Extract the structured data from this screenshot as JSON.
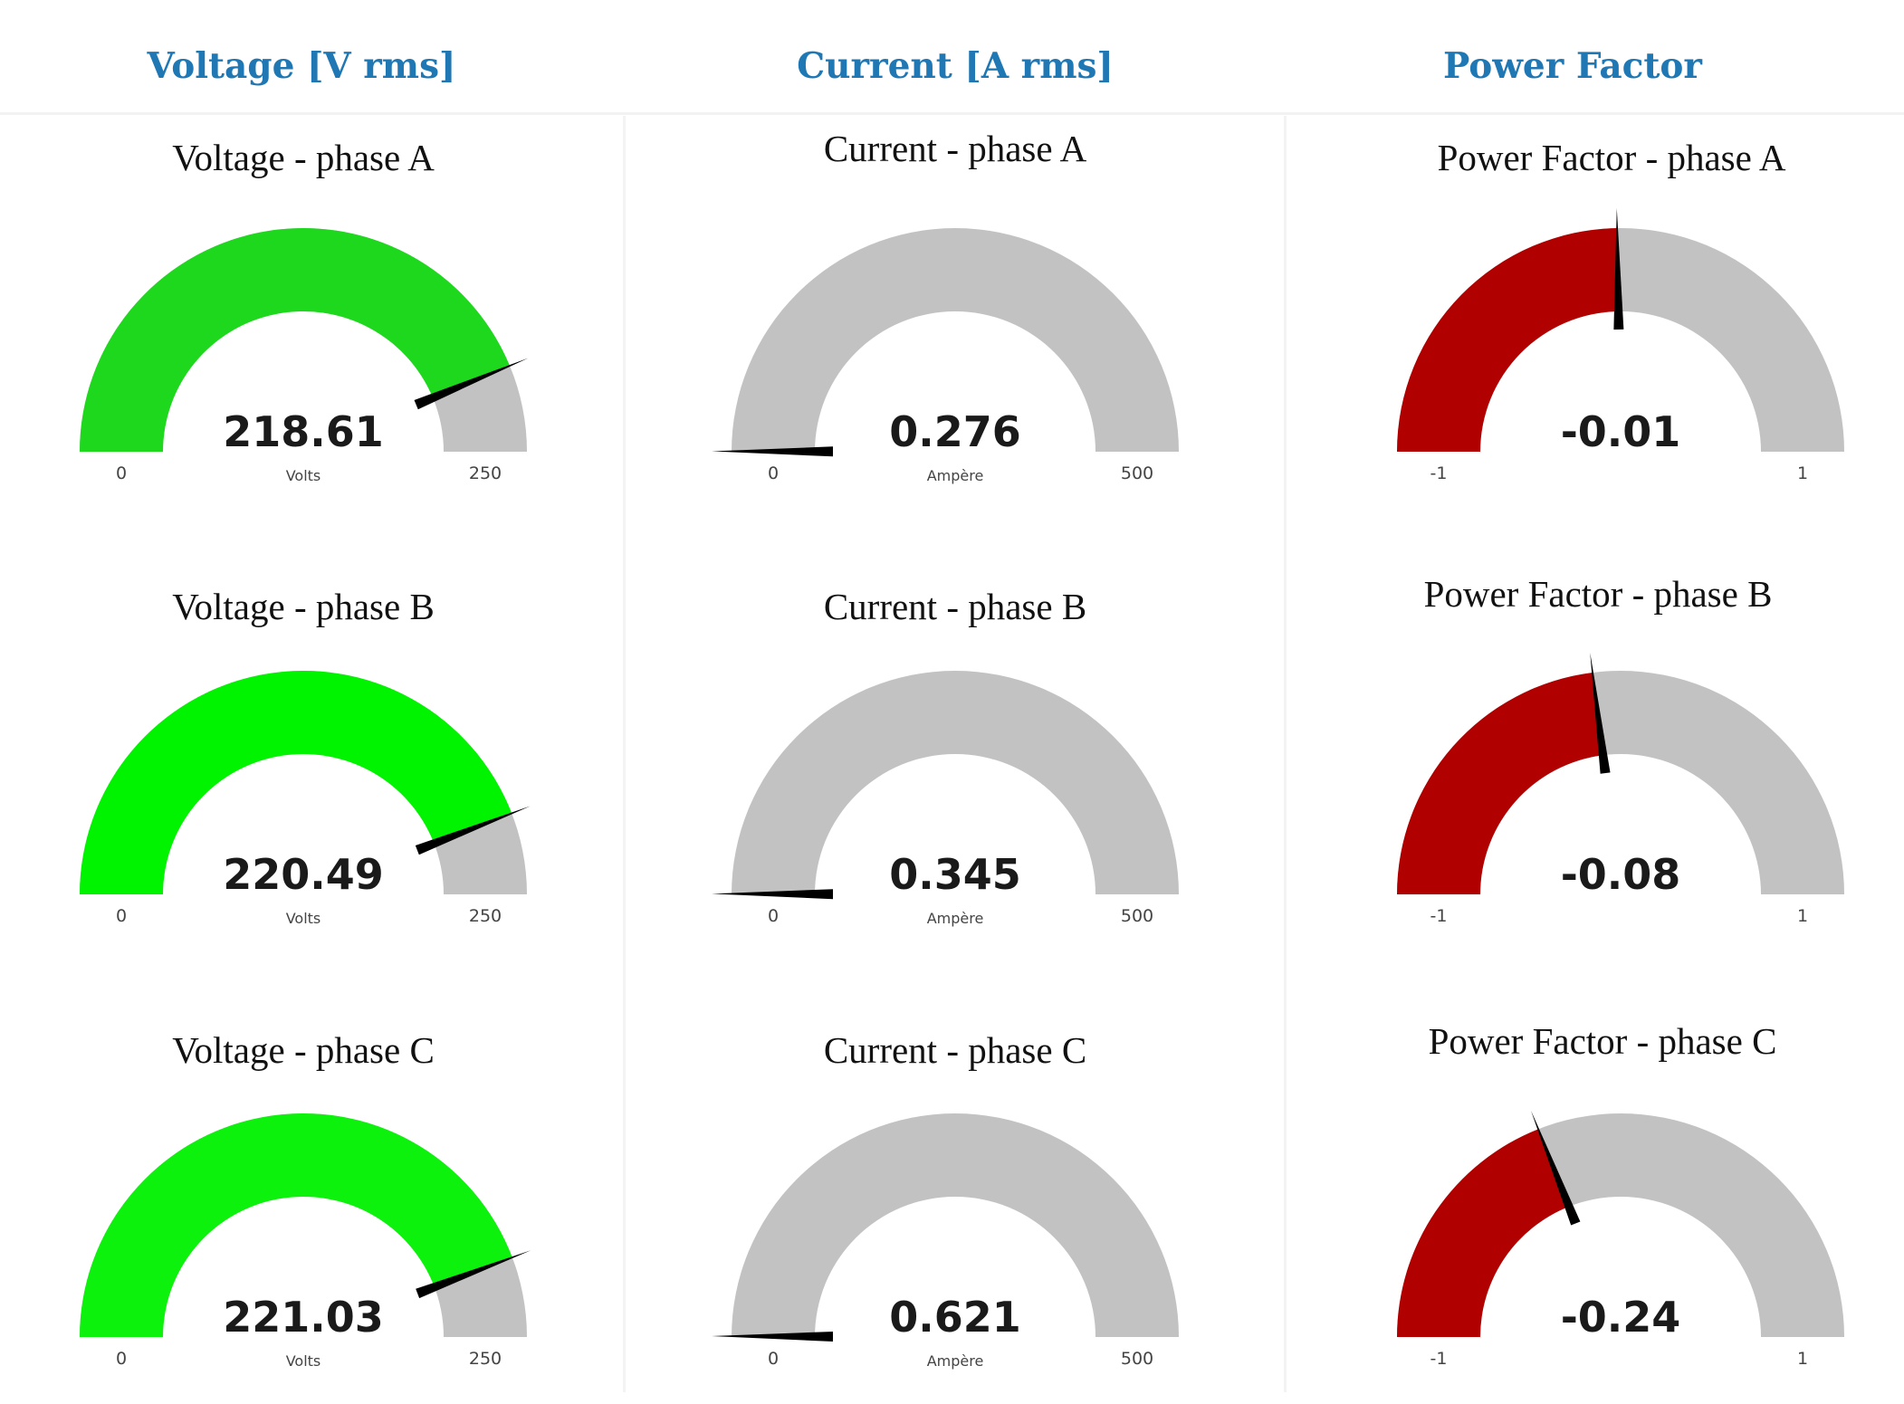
{
  "columns": [
    {
      "header": "Voltage [V rms]",
      "header_color": "#1f78b4",
      "gauges": [
        {
          "title": "Voltage - phase A",
          "value": 218.61,
          "value_text": "218.61",
          "unit": "Volts",
          "min": 0,
          "max": 250,
          "min_label": "0",
          "max_label": "250",
          "fill_color": "#1ed81e",
          "track_color": "#c2c2c2",
          "needle_color": "#000000"
        },
        {
          "title": "Voltage - phase B",
          "value": 220.49,
          "value_text": "220.49",
          "unit": "Volts",
          "min": 0,
          "max": 250,
          "min_label": "0",
          "max_label": "250",
          "fill_color": "#00f400",
          "track_color": "#c2c2c2",
          "needle_color": "#000000"
        },
        {
          "title": "Voltage - phase C",
          "value": 221.03,
          "value_text": "221.03",
          "unit": "Volts",
          "min": 0,
          "max": 250,
          "min_label": "0",
          "max_label": "250",
          "fill_color": "#0cf20c",
          "track_color": "#c2c2c2",
          "needle_color": "#000000"
        }
      ]
    },
    {
      "header": "Current [A rms]",
      "header_color": "#1f78b4",
      "gauges": [
        {
          "title": "Current - phase A",
          "value": 0.276,
          "value_text": "0.276",
          "unit": "Ampère",
          "min": 0,
          "max": 500,
          "min_label": "0",
          "max_label": "500",
          "fill_color": "#1ed81e",
          "track_color": "#c2c2c2",
          "needle_color": "#000000"
        },
        {
          "title": "Current - phase B",
          "value": 0.345,
          "value_text": "0.345",
          "unit": "Ampère",
          "min": 0,
          "max": 500,
          "min_label": "0",
          "max_label": "500",
          "fill_color": "#1ed81e",
          "track_color": "#c2c2c2",
          "needle_color": "#000000"
        },
        {
          "title": "Current - phase C",
          "value": 0.621,
          "value_text": "0.621",
          "unit": "Ampère",
          "min": 0,
          "max": 500,
          "min_label": "0",
          "max_label": "500",
          "fill_color": "#1ed81e",
          "track_color": "#c2c2c2",
          "needle_color": "#000000"
        }
      ]
    },
    {
      "header": "Power Factor",
      "header_color": "#1f78b4",
      "gauges": [
        {
          "title": "Power Factor - phase A",
          "value": -0.01,
          "value_text": "-0.01",
          "unit": "",
          "min": -1,
          "max": 1,
          "min_label": "-1",
          "max_label": "1",
          "fill_color": "#b10000",
          "track_color": "#c2c2c2",
          "needle_color": "#000000"
        },
        {
          "title": "Power Factor - phase B",
          "value": -0.08,
          "value_text": "-0.08",
          "unit": "",
          "min": -1,
          "max": 1,
          "min_label": "-1",
          "max_label": "1",
          "fill_color": "#b10000",
          "track_color": "#c2c2c2",
          "needle_color": "#000000"
        },
        {
          "title": "Power Factor - phase C",
          "value": -0.24,
          "value_text": "-0.24",
          "unit": "",
          "min": -1,
          "max": 1,
          "min_label": "-1",
          "max_label": "1",
          "fill_color": "#b10000",
          "track_color": "#c2c2c2",
          "needle_color": "#000000"
        }
      ]
    }
  ]
}
